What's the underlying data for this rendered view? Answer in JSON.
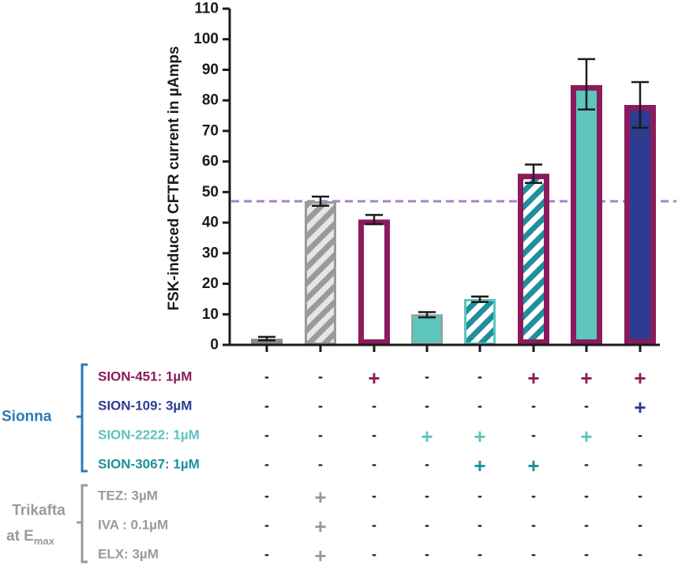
{
  "chart_data": {
    "type": "bar",
    "ylabel": "FSK-induced CFTR current in µAmps",
    "ylim": [
      0,
      110
    ],
    "yticks": [
      "0",
      "10",
      "20",
      "30",
      "40",
      "50",
      "60",
      "70",
      "80",
      "90",
      "100",
      "110"
    ],
    "grid": false,
    "reference_line": {
      "value": 47,
      "style": "dashed",
      "color": "#a77fd1"
    },
    "bars": [
      {
        "value": 2,
        "err_low": 1.5,
        "err_high": 2.6,
        "fill": "#8a8a8a",
        "pattern": "none",
        "outline": "#8a8a8a"
      },
      {
        "value": 47,
        "err_low": 45.5,
        "err_high": 48.5,
        "fill": "#9a9a9a",
        "pattern": "hatch",
        "outline": "#9a9a9a"
      },
      {
        "value": 41,
        "err_low": 39.5,
        "err_high": 42.5,
        "fill": "#ffffff",
        "pattern": "none",
        "outline": "#8b1b5c"
      },
      {
        "value": 10,
        "err_low": 9,
        "err_high": 10.7,
        "fill": "#5bc5be",
        "pattern": "none",
        "outline": "#8ea7a6"
      },
      {
        "value": 15,
        "err_low": 14,
        "err_high": 15.8,
        "fill": "#1f8f9b",
        "pattern": "hatch",
        "outline": "#5bc5be"
      },
      {
        "value": 56,
        "err_low": 53,
        "err_high": 59,
        "fill": "#1f8f9b",
        "pattern": "hatch",
        "outline": "#8b1b5c"
      },
      {
        "value": 85,
        "err_low": 77,
        "err_high": 93.5,
        "fill": "#5bc5be",
        "pattern": "none",
        "outline": "#8b1b5c"
      },
      {
        "value": 78.5,
        "err_low": 71,
        "err_high": 86,
        "fill": "#2d3c91",
        "pattern": "none",
        "outline": "#8b1b5c"
      }
    ],
    "conditions": [
      {
        "label": "SION-451: 1µM",
        "color": "#8b1b5c",
        "marks": [
          "-",
          "-",
          "+",
          "-",
          "-",
          "+",
          "+",
          "+"
        ]
      },
      {
        "label": "SION-109: 3µM",
        "color": "#2d3c91",
        "marks": [
          "-",
          "-",
          "-",
          "-",
          "-",
          "-",
          "-",
          "+"
        ]
      },
      {
        "label": "SION-2222: 1µM",
        "color": "#5bc5be",
        "marks": [
          "-",
          "-",
          "-",
          "+",
          "+",
          "-",
          "+",
          "-"
        ]
      },
      {
        "label": "SION-3067: 1µM",
        "color": "#1f8f9b",
        "marks": [
          "-",
          "-",
          "-",
          "-",
          "+",
          "+",
          "-",
          "-"
        ]
      },
      {
        "label": "TEZ: 3µM",
        "color": "#9a9a9a",
        "marks": [
          "-",
          "+",
          "-",
          "-",
          "-",
          "-",
          "-",
          "-"
        ]
      },
      {
        "label": "IVA : 0.1µM",
        "color": "#9a9a9a",
        "marks": [
          "-",
          "+",
          "-",
          "-",
          "-",
          "-",
          "-",
          "-"
        ]
      },
      {
        "label": "ELX: 3µM",
        "color": "#9a9a9a",
        "marks": [
          "-",
          "+",
          "-",
          "-",
          "-",
          "-",
          "-",
          "-"
        ]
      }
    ],
    "groups": [
      {
        "label": "Sionna",
        "color": "#2a7ab8"
      },
      {
        "label_line1": "Trikafta",
        "label_line2_main": "at E",
        "label_line2_sub": "max",
        "color": "#9a9a9a"
      }
    ],
    "colors": {
      "axis": "#1a1a1a",
      "minus": "#1a1a1a",
      "error_bar": "#1a1a1a"
    }
  }
}
